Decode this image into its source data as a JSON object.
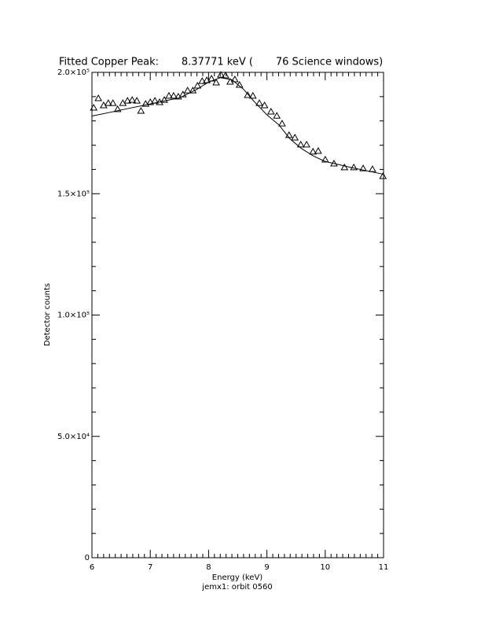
{
  "chart_data": {
    "type": "scatter",
    "title": "Fitted Copper Peak:       8.37771 keV (       76 Science windows)",
    "x_label": "Energy (keV)",
    "y_label": "Detector counts",
    "footer": "jemx1: orbit 0560",
    "xlim": [
      6,
      11
    ],
    "xticks": [
      6,
      7,
      8,
      9,
      10,
      11
    ],
    "ylim": [
      0,
      200000
    ],
    "yticks": [
      {
        "value": 0,
        "label": "0"
      },
      {
        "value": 50000,
        "label": "5.0×10⁴"
      },
      {
        "value": 100000,
        "label": "1.0×10⁵"
      },
      {
        "value": 150000,
        "label": "1.5×10⁵"
      },
      {
        "value": 200000,
        "label": "2.0×10⁵"
      }
    ],
    "minor_divisions": {
      "x": 10,
      "y": 5
    },
    "color": "#000000",
    "series": [
      {
        "marker": "triangle",
        "x": [
          6.03,
          6.11,
          6.2,
          6.28,
          6.36,
          6.44,
          6.53,
          6.61,
          6.69,
          6.77,
          6.84,
          6.92,
          7.0,
          7.08,
          7.16,
          7.24,
          7.32,
          7.4,
          7.48,
          7.56,
          7.64,
          7.73,
          7.81,
          7.89,
          7.97,
          8.05,
          8.13,
          8.21,
          8.29,
          8.37,
          8.45,
          8.53,
          8.67,
          8.76,
          8.87,
          8.96,
          9.07,
          9.17,
          9.26,
          9.38,
          9.48,
          9.58,
          9.68,
          9.79,
          9.88,
          10.0,
          10.15,
          10.33,
          10.49,
          10.65,
          10.81,
          10.99
        ],
        "values": [
          185400,
          189300,
          186400,
          187300,
          187300,
          184800,
          187300,
          188300,
          188600,
          188300,
          184100,
          187000,
          187700,
          188300,
          187700,
          188600,
          190300,
          190300,
          190000,
          190900,
          192500,
          192500,
          194500,
          196400,
          196700,
          197400,
          195800,
          199000,
          198700,
          196100,
          197100,
          194800,
          190600,
          190300,
          187300,
          186400,
          183800,
          182100,
          178900,
          174100,
          173100,
          170200,
          170200,
          167300,
          167600,
          164000,
          162400,
          160800,
          160800,
          160400,
          160100,
          157200
        ]
      },
      {
        "marker": "line",
        "x": [
          6.0,
          6.5,
          7.0,
          7.5,
          7.8,
          8.0,
          8.2,
          8.4,
          8.6,
          8.8,
          9.0,
          9.2,
          9.4,
          9.6,
          9.8,
          10.0,
          10.5,
          11.0
        ],
        "values": [
          182000,
          184500,
          187000,
          189500,
          193000,
          196000,
          197800,
          197000,
          193000,
          187500,
          182500,
          178500,
          172500,
          168500,
          165500,
          163300,
          160500,
          158000
        ]
      }
    ]
  }
}
